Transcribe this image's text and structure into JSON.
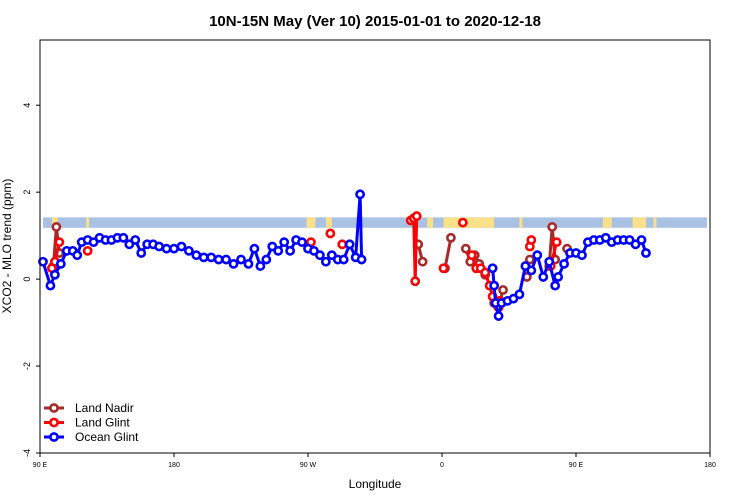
{
  "chart_data": {
    "type": "line",
    "title": "10N-15N May (Ver 10)   2015-01-01 to 2020-12-18",
    "xlabel": "Longitude",
    "ylabel": "XCO2 - MLO trend (ppm)",
    "xlim": [
      90,
      540
    ],
    "ylim": [
      -4.0,
      5.5
    ],
    "x_ticks": [
      {
        "x": 90,
        "label": "90 E"
      },
      {
        "x": 180,
        "label": "180"
      },
      {
        "x": 270,
        "label": "90 W"
      },
      {
        "x": 360,
        "label": "0"
      },
      {
        "x": 450,
        "label": "90 E"
      },
      {
        "x": 540,
        "label": "180"
      }
    ],
    "y_ticks": [
      {
        "y": -4,
        "label": "-4"
      },
      {
        "y": -2,
        "label": "-2"
      },
      {
        "y": 0,
        "label": "0"
      },
      {
        "y": 2,
        "label": "2"
      },
      {
        "y": 4,
        "label": "4"
      }
    ],
    "land_band": {
      "y_range": [
        1.18,
        1.42
      ],
      "ocean_color": "#a9c1e2",
      "land_color": "#fbe08a",
      "land_segments": [
        [
          98,
          102
        ],
        [
          121,
          123
        ],
        [
          269,
          275
        ],
        [
          282,
          286
        ],
        [
          350,
          354
        ],
        [
          361,
          395
        ],
        [
          412,
          414
        ],
        [
          468,
          474
        ],
        [
          488,
          497
        ],
        [
          502,
          504
        ]
      ]
    },
    "legend_position": "bottom-left",
    "series": [
      {
        "name": "Land Nadir",
        "color": "#a52a2a",
        "segments": [
          [
            [
              99,
              0.3
            ],
            [
              101,
              1.2
            ],
            [
              103,
              0.6
            ]
          ],
          [
            [
              344,
              0.8
            ],
            [
              347,
              0.4
            ]
          ],
          [
            [
              362,
              0.25
            ],
            [
              366,
              0.95
            ]
          ],
          [
            [
              376,
              0.7
            ],
            [
              379,
              0.4
            ],
            [
              382,
              0.55
            ],
            [
              385,
              0.35
            ],
            [
              389,
              0.1
            ]
          ],
          [
            [
              395,
              -0.55
            ],
            [
              397,
              -0.6
            ],
            [
              399,
              -0.5
            ],
            [
              401,
              -0.25
            ]
          ],
          [
            [
              417,
              0.05
            ],
            [
              419,
              0.45
            ]
          ],
          [
            [
              432,
              0.3
            ],
            [
              434,
              1.2
            ],
            [
              436,
              0.45
            ]
          ],
          [
            [
              444,
              0.7
            ]
          ]
        ]
      },
      {
        "name": "Land Glint",
        "color": "#ff0000",
        "segments": [
          [
            [
              98,
              0.25
            ],
            [
              100,
              0.4
            ],
            [
              103,
              0.85
            ]
          ],
          [
            [
              122,
              0.65
            ]
          ],
          [
            [
              272,
              0.85
            ]
          ],
          [
            [
              285,
              1.05
            ]
          ],
          [
            [
              293,
              0.8
            ]
          ],
          [
            [
              339,
              1.35
            ],
            [
              341,
              1.4
            ],
            [
              342,
              -0.05
            ],
            [
              343,
              1.45
            ]
          ],
          [
            [
              361,
              0.25
            ]
          ],
          [
            [
              374,
              1.3
            ]
          ],
          [
            [
              380,
              0.55
            ],
            [
              383,
              0.25
            ],
            [
              386,
              0.25
            ],
            [
              389,
              0.15
            ],
            [
              392,
              -0.15
            ],
            [
              394,
              -0.4
            ]
          ],
          [
            [
              398,
              -0.65
            ],
            [
              399,
              -0.5
            ]
          ],
          [
            [
              419,
              0.75
            ],
            [
              420,
              0.9
            ]
          ],
          [
            [
              433,
              0.3
            ],
            [
              437,
              0.85
            ]
          ]
        ]
      },
      {
        "name": "Ocean Glint",
        "color": "#0000ff",
        "segments": [
          [
            [
              92,
              0.4
            ],
            [
              97,
              -0.15
            ],
            [
              100,
              0.1
            ],
            [
              104,
              0.35
            ],
            [
              108,
              0.65
            ],
            [
              112,
              0.65
            ],
            [
              115,
              0.55
            ],
            [
              118,
              0.85
            ],
            [
              122,
              0.9
            ],
            [
              126,
              0.85
            ],
            [
              130,
              0.95
            ],
            [
              134,
              0.9
            ],
            [
              138,
              0.9
            ],
            [
              142,
              0.95
            ],
            [
              146,
              0.95
            ],
            [
              150,
              0.8
            ],
            [
              154,
              0.9
            ],
            [
              158,
              0.6
            ],
            [
              162,
              0.8
            ],
            [
              166,
              0.8
            ],
            [
              170,
              0.75
            ],
            [
              175,
              0.7
            ],
            [
              180,
              0.7
            ],
            [
              185,
              0.75
            ],
            [
              190,
              0.65
            ],
            [
              195,
              0.55
            ],
            [
              200,
              0.5
            ],
            [
              205,
              0.5
            ],
            [
              210,
              0.45
            ],
            [
              215,
              0.45
            ],
            [
              220,
              0.35
            ],
            [
              225,
              0.45
            ],
            [
              230,
              0.35
            ],
            [
              234,
              0.7
            ],
            [
              238,
              0.3
            ],
            [
              242,
              0.45
            ],
            [
              246,
              0.75
            ],
            [
              250,
              0.65
            ],
            [
              254,
              0.85
            ],
            [
              258,
              0.65
            ],
            [
              262,
              0.9
            ],
            [
              266,
              0.85
            ],
            [
              270,
              0.7
            ],
            [
              274,
              0.65
            ],
            [
              278,
              0.55
            ],
            [
              282,
              0.4
            ],
            [
              286,
              0.55
            ],
            [
              290,
              0.45
            ],
            [
              294,
              0.45
            ],
            [
              298,
              0.8
            ],
            [
              302,
              0.5
            ],
            [
              305,
              1.95
            ],
            [
              306,
              0.45
            ]
          ],
          [
            [
              394,
              0.25
            ],
            [
              395,
              -0.15
            ],
            [
              396,
              -0.55
            ],
            [
              398,
              -0.85
            ],
            [
              400,
              -0.55
            ],
            [
              404,
              -0.5
            ],
            [
              408,
              -0.45
            ],
            [
              412,
              -0.35
            ],
            [
              416,
              0.3
            ],
            [
              420,
              0.2
            ],
            [
              424,
              0.55
            ],
            [
              428,
              0.05
            ],
            [
              432,
              0.4
            ],
            [
              436,
              -0.15
            ],
            [
              438,
              0.05
            ],
            [
              442,
              0.35
            ],
            [
              446,
              0.6
            ],
            [
              450,
              0.6
            ],
            [
              454,
              0.55
            ],
            [
              458,
              0.85
            ],
            [
              462,
              0.9
            ],
            [
              466,
              0.9
            ],
            [
              470,
              0.95
            ],
            [
              474,
              0.85
            ],
            [
              478,
              0.9
            ],
            [
              482,
              0.9
            ],
            [
              486,
              0.9
            ],
            [
              490,
              0.8
            ],
            [
              494,
              0.9
            ],
            [
              497,
              0.6
            ]
          ]
        ]
      }
    ]
  }
}
